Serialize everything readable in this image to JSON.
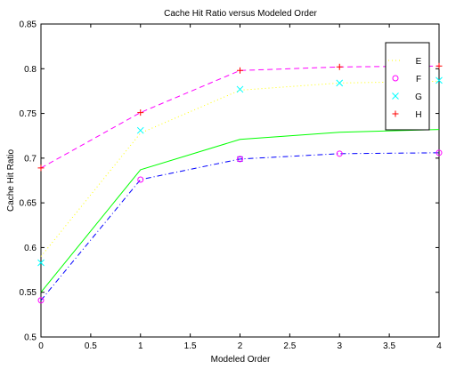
{
  "chart_data": {
    "type": "line",
    "title": "Cache Hit Ratio versus Modeled Order",
    "xlabel": "Modeled Order",
    "ylabel": "Cache Hit Ratio",
    "xlim": [
      0,
      4
    ],
    "ylim": [
      0.5,
      0.85
    ],
    "x_ticks": [
      "0",
      "0.5",
      "1",
      "1.5",
      "2",
      "2.5",
      "3",
      "3.5",
      "4"
    ],
    "y_ticks": [
      "0.5",
      "0.55",
      "0.6",
      "0.65",
      "0.7",
      "0.75",
      "0.8",
      "0.85"
    ],
    "grid": false,
    "legend_position": "top-right",
    "x": [
      0,
      1,
      2,
      3,
      4
    ],
    "series": [
      {
        "name": "E",
        "values": [
          0.59,
          0.728,
          0.776,
          0.784,
          0.786
        ],
        "color": "#ffff00",
        "line": "dotted",
        "marker": "none"
      },
      {
        "name": "F",
        "values": [
          0.541,
          0.676,
          0.699,
          0.705,
          0.706
        ],
        "color": "#ff00ff",
        "line": "none",
        "marker": "circle"
      },
      {
        "name": "G",
        "values": [
          0.583,
          0.731,
          0.777,
          0.784,
          0.787
        ],
        "color": "#00ffff",
        "line": "none",
        "marker": "x"
      },
      {
        "name": "H",
        "values": [
          0.689,
          0.751,
          0.798,
          0.802,
          0.803
        ],
        "color": "#ff0000",
        "line": "none",
        "marker": "plus"
      }
    ],
    "unlabeled_lines": [
      {
        "values": [
          0.55,
          0.687,
          0.721,
          0.729,
          0.732
        ],
        "color": "#00ff00",
        "line": "solid"
      },
      {
        "values": [
          0.541,
          0.676,
          0.699,
          0.705,
          0.706
        ],
        "color": "#0000ff",
        "line": "dashdot",
        "square_marker_at_x": 2
      },
      {
        "values": [
          0.689,
          0.751,
          0.798,
          0.802,
          0.803
        ],
        "color": "#ff00ff",
        "line": "dashed"
      }
    ]
  }
}
